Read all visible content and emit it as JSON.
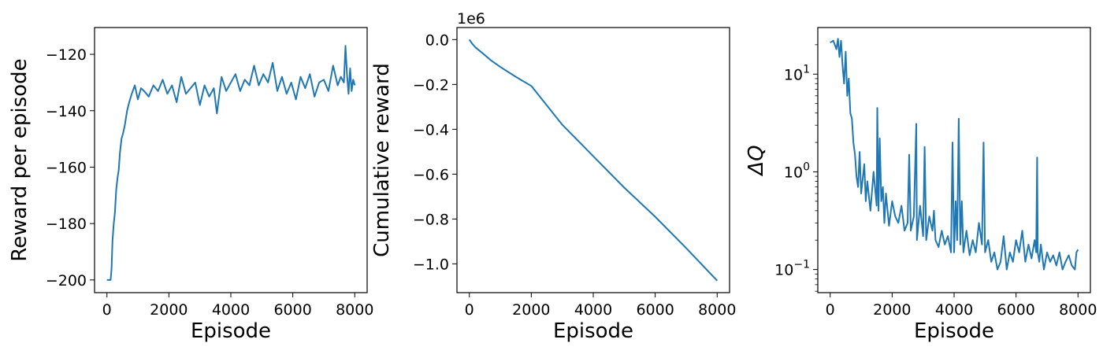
{
  "chart_data": [
    {
      "type": "line",
      "xlabel": "Episode",
      "ylabel": "Reward per episode",
      "xlim": [
        -400,
        8400
      ],
      "ylim": [
        -204.5,
        -110.5
      ],
      "xticks": [
        0,
        2000,
        4000,
        6000,
        8000
      ],
      "xtick_labels": [
        "0",
        "2000",
        "4000",
        "6000",
        "8000"
      ],
      "yticks": [
        -200,
        -180,
        -160,
        -140,
        -120
      ],
      "ytick_labels": [
        "−200",
        "−180",
        "−160",
        "−140",
        "−120"
      ],
      "color": "#1f77b4",
      "series": [
        {
          "x": [
            0,
            60,
            120,
            150,
            180,
            220,
            260,
            300,
            340,
            380,
            420,
            470,
            520,
            580,
            650,
            720,
            800,
            900,
            1000,
            1100,
            1200,
            1350,
            1500,
            1650,
            1800,
            1950,
            2100,
            2250,
            2400,
            2550,
            2700,
            2850,
            3000,
            3150,
            3300,
            3450,
            3550,
            3700,
            3850,
            4000,
            4150,
            4300,
            4450,
            4600,
            4750,
            4900,
            5050,
            5200,
            5350,
            5500,
            5650,
            5800,
            5950,
            6100,
            6250,
            6400,
            6550,
            6700,
            6850,
            7000,
            7150,
            7300,
            7450,
            7550,
            7650,
            7700,
            7750,
            7800,
            7850,
            7900,
            7950,
            8000
          ],
          "y": [
            -200,
            -200,
            -200,
            -196,
            -186,
            -180,
            -176,
            -168,
            -164,
            -161,
            -155,
            -150,
            -148,
            -145,
            -140,
            -137,
            -134,
            -131,
            -136,
            -132,
            -133,
            -135,
            -131,
            -133,
            -129,
            -134,
            -131,
            -137,
            -128,
            -134,
            -132,
            -130,
            -138,
            -131,
            -135,
            -132,
            -141,
            -128,
            -133,
            -130,
            -127,
            -133,
            -129,
            -131,
            -124,
            -131,
            -127,
            -130,
            -123,
            -133,
            -128,
            -134,
            -130,
            -136,
            -128,
            -132,
            -127,
            -135,
            -130,
            -129,
            -133,
            -124,
            -131,
            -128,
            -130,
            -117,
            -127,
            -134,
            -125,
            -133,
            -129,
            -131
          ]
        }
      ]
    },
    {
      "type": "line",
      "xlabel": "Episode",
      "ylabel": "Cumulative reward",
      "offset_text": "1e6",
      "xlim": [
        -400,
        8400
      ],
      "ylim": [
        -1.1284,
        0.0537
      ],
      "xticks": [
        0,
        2000,
        4000,
        6000,
        8000
      ],
      "xtick_labels": [
        "0",
        "2000",
        "4000",
        "6000",
        "8000"
      ],
      "yticks": [
        0.0,
        -0.2,
        -0.4,
        -0.6,
        -0.8,
        -1.0
      ],
      "ytick_labels": [
        "0.0",
        "−0.2",
        "−0.4",
        "−0.6",
        "−0.8",
        "−1.0"
      ],
      "color": "#1f77b4",
      "series": [
        {
          "x": [
            0,
            100,
            200,
            400,
            700,
            1000,
            1500,
            2000,
            3000,
            4000,
            5000,
            6000,
            7000,
            8000
          ],
          "y": [
            0,
            -0.02,
            -0.035,
            -0.058,
            -0.093,
            -0.122,
            -0.166,
            -0.207,
            -0.38,
            -0.52,
            -0.66,
            -0.79,
            -0.93,
            -1.075
          ]
        }
      ]
    },
    {
      "type": "line",
      "xlabel": "Episode",
      "ylabel": "ΔQ",
      "yscale": "log",
      "xlim": [
        -400,
        8400
      ],
      "ylim": [
        0.058,
        30
      ],
      "xticks": [
        0,
        2000,
        4000,
        6000,
        8000
      ],
      "xtick_labels": [
        "0",
        "2000",
        "4000",
        "6000",
        "8000"
      ],
      "yticks": [
        0.1,
        1,
        10
      ],
      "ytick_labels": [
        {
          "base": "10",
          "exp": "−1"
        },
        {
          "base": "10",
          "exp": "0"
        },
        {
          "base": "10",
          "exp": "1"
        }
      ],
      "color": "#1f77b4",
      "series": [
        {
          "x": [
            0,
            100,
            200,
            250,
            300,
            350,
            400,
            450,
            500,
            550,
            600,
            650,
            700,
            750,
            800,
            850,
            900,
            950,
            1000,
            1100,
            1150,
            1200,
            1300,
            1400,
            1500,
            1520,
            1560,
            1600,
            1650,
            1700,
            1750,
            1800,
            1900,
            2000,
            2100,
            2200,
            2300,
            2400,
            2500,
            2550,
            2600,
            2700,
            2780,
            2800,
            2850,
            2900,
            3000,
            3050,
            3100,
            3200,
            3300,
            3350,
            3400,
            3500,
            3600,
            3700,
            3800,
            3900,
            3950,
            4000,
            4050,
            4100,
            4150,
            4200,
            4250,
            4300,
            4400,
            4500,
            4600,
            4700,
            4800,
            4900,
            4950,
            5000,
            5100,
            5200,
            5300,
            5400,
            5500,
            5600,
            5700,
            5800,
            5900,
            6000,
            6100,
            6200,
            6300,
            6400,
            6500,
            6600,
            6650,
            6680,
            6700,
            6750,
            6800,
            6900,
            7000,
            7100,
            7200,
            7300,
            7400,
            7500,
            7600,
            7700,
            7800,
            7900,
            7950,
            8000
          ],
          "y": [
            21,
            22,
            18,
            23,
            15,
            22,
            12,
            8,
            17,
            6,
            9,
            4,
            3.5,
            2,
            1.5,
            0.9,
            0.7,
            1.6,
            0.6,
            1.2,
            0.5,
            0.8,
            0.4,
            1.0,
            0.45,
            4.5,
            0.4,
            2.2,
            0.5,
            0.7,
            0.3,
            0.6,
            0.28,
            0.5,
            0.35,
            0.3,
            0.45,
            0.25,
            0.3,
            1.5,
            0.25,
            0.35,
            3.1,
            0.2,
            0.3,
            0.45,
            0.22,
            1.8,
            0.2,
            0.35,
            0.25,
            0.4,
            0.2,
            0.17,
            0.25,
            0.18,
            0.22,
            0.15,
            2.0,
            0.15,
            0.5,
            0.2,
            3.5,
            0.18,
            0.5,
            0.15,
            0.25,
            0.14,
            0.2,
            0.15,
            0.3,
            0.18,
            2.0,
            0.15,
            0.2,
            0.12,
            0.15,
            0.1,
            0.12,
            0.22,
            0.1,
            0.15,
            0.12,
            0.2,
            0.15,
            0.25,
            0.12,
            0.18,
            0.13,
            0.2,
            0.15,
            1.4,
            0.15,
            0.12,
            0.18,
            0.1,
            0.15,
            0.12,
            0.14,
            0.11,
            0.15,
            0.1,
            0.12,
            0.14,
            0.11,
            0.1,
            0.15,
            0.16
          ]
        }
      ]
    }
  ]
}
